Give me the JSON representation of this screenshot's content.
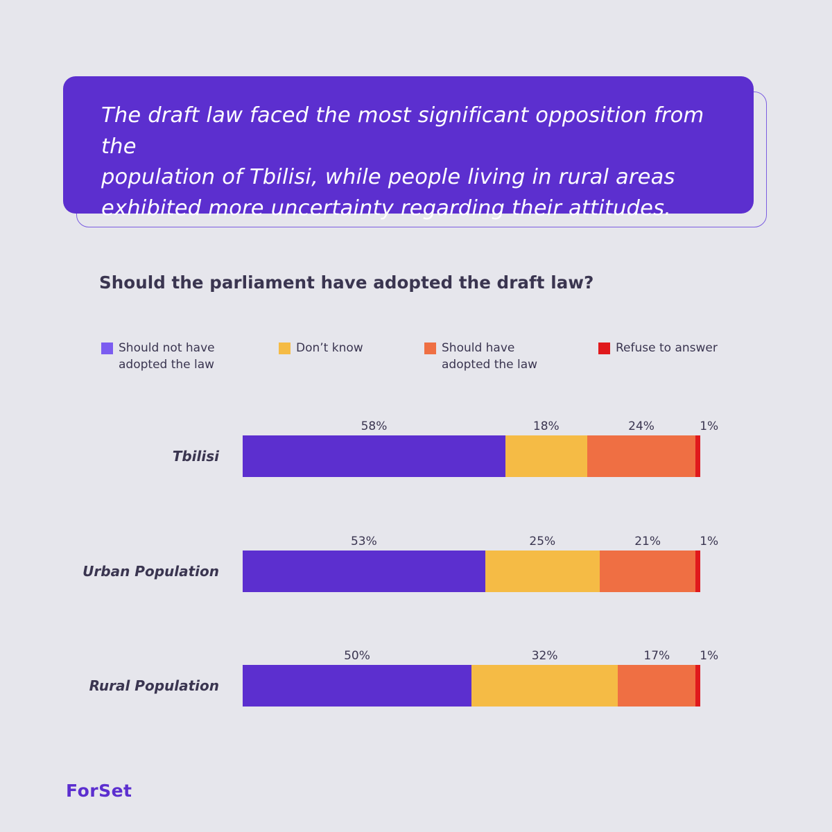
{
  "quote": {
    "line1": "The draft law faced the most significant opposition from the",
    "line2": "population of Tbilisi, while people living in rural areas",
    "line3": "exhibited more uncertainty regarding their attitudes."
  },
  "chart_data": {
    "type": "bar",
    "orientation": "horizontal-stacked",
    "title": "Should the parliament have adopted the draft law?",
    "categories": [
      "Tbilisi",
      "Urban Population",
      "Rural Population"
    ],
    "series": [
      {
        "name": "Should not have adopted the law",
        "legend_lines": [
          "Should not have",
          "adopted the law"
        ],
        "color": "#5c2fcf",
        "swatch_color": "#7b5cf0",
        "values": [
          58,
          53,
          50
        ],
        "labels": [
          "58%",
          "53%",
          "50%"
        ]
      },
      {
        "name": "Don’t know",
        "legend_lines": [
          "Don’t know"
        ],
        "color": "#f5bb45",
        "swatch_color": "#f5bb45",
        "values": [
          18,
          25,
          32
        ],
        "labels": [
          "18%",
          "25%",
          "32%"
        ]
      },
      {
        "name": "Should have adopted the law",
        "legend_lines": [
          "Should have",
          "adopted the law"
        ],
        "color": "#ef6f43",
        "swatch_color": "#ef6f43",
        "values": [
          24,
          21,
          17
        ],
        "labels": [
          "24%",
          "21%",
          "17%"
        ]
      },
      {
        "name": "Refuse to answer",
        "legend_lines": [
          "Refuse to answer"
        ],
        "color": "#e0191c",
        "swatch_color": "#e0191c",
        "values": [
          1,
          1,
          1
        ],
        "labels": [
          "1%",
          "1%",
          "1%"
        ]
      }
    ],
    "legend_position": "top",
    "grid": false
  },
  "brand": {
    "logo_text": "ForSet"
  }
}
